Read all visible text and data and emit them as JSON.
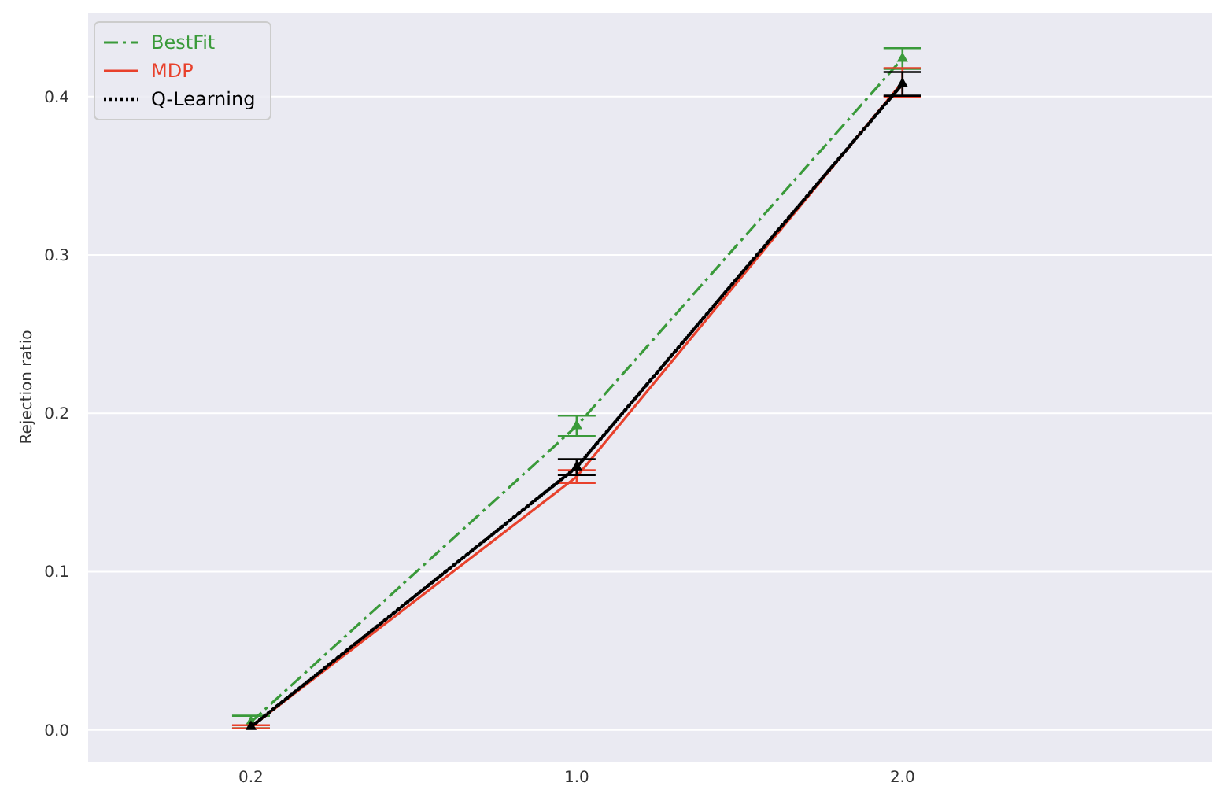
{
  "chart_data": {
    "type": "line",
    "ylabel": "Rejection ratio",
    "categories": [
      "0.2",
      "1.0",
      "2.0"
    ],
    "ylim": [
      -0.02,
      0.453
    ],
    "yticks": [
      {
        "value": 0,
        "label": "0.0"
      },
      0.1,
      0.2,
      0.3,
      0.4
    ],
    "grid": "y",
    "legend": "top left",
    "series": [
      {
        "name": "BestFit",
        "color": "#3a9a3a",
        "values": [
          0.005,
          0.192,
          0.424
        ],
        "errors": [
          0.004,
          0.0065,
          0.0065
        ],
        "line_style": "dashed",
        "marker": "triangle"
      },
      {
        "name": "MDP",
        "color": "#e8412c",
        "values": [
          0.002,
          0.16,
          0.409
        ],
        "errors": [
          0.001,
          0.004,
          0.009
        ],
        "line_style": "solid",
        "marker": "none"
      },
      {
        "name": "Q-Learning",
        "color": "#000000",
        "values": [
          0.002,
          0.166,
          0.408
        ],
        "errors": [
          null,
          0.005,
          0.0075
        ],
        "line_style": "dotted",
        "marker": "triangle"
      }
    ]
  }
}
